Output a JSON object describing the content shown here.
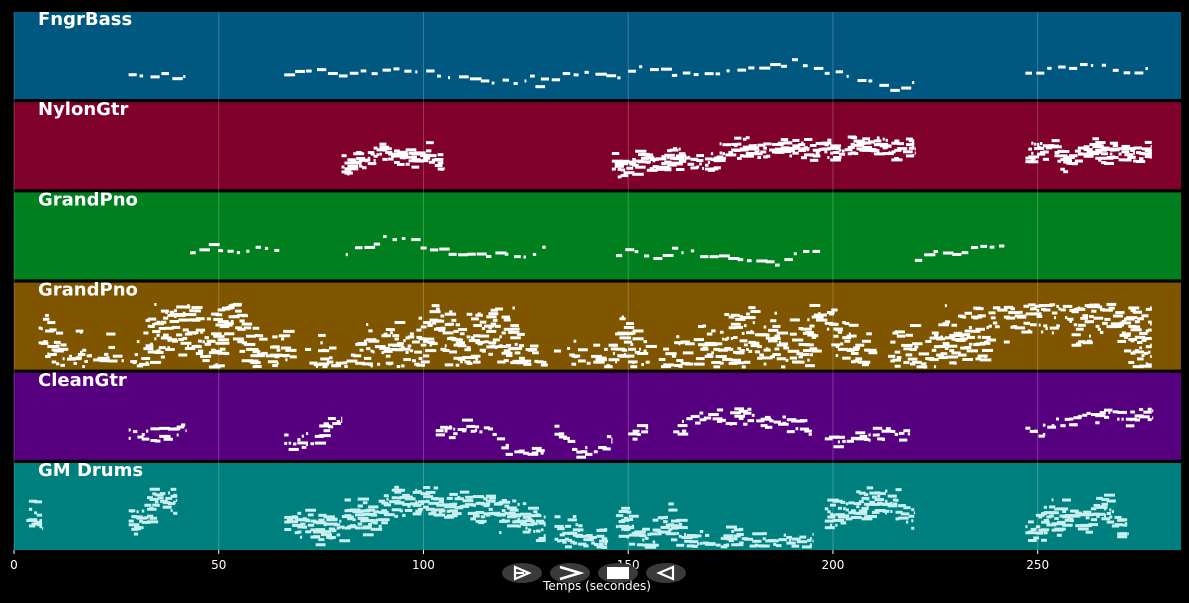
{
  "window": {
    "background": "#000000"
  },
  "chart_data": {
    "type": "piano-roll",
    "xlabel": "Temps (secondes)",
    "xlim": [
      0,
      285
    ],
    "xticks": [
      0,
      50,
      100,
      150,
      200,
      250
    ],
    "grid": true,
    "tracks": [
      {
        "name": "FngrBass",
        "color": "#00577f",
        "note_color": "#ffffff",
        "segments": [
          [
            28,
            42
          ],
          [
            66,
            130
          ],
          [
            126,
            220
          ],
          [
            247,
            278
          ]
        ],
        "pitch_spread": 0.18,
        "density": 1.2
      },
      {
        "name": "NylonGtr",
        "color": "#7f002b",
        "note_color": "#ffffff",
        "segments": [
          [
            80,
            105
          ],
          [
            146,
            220
          ],
          [
            247,
            278
          ]
        ],
        "pitch_spread": 0.22,
        "density": 4.5
      },
      {
        "name": "GrandPno",
        "color": "#007f1e",
        "note_color": "#ffffff",
        "segments": [
          [
            43,
            65
          ],
          [
            81,
            130
          ],
          [
            147,
            197
          ],
          [
            220,
            242
          ]
        ],
        "pitch_spread": 0.2,
        "density": 1.4
      },
      {
        "name": "GrandPno",
        "color": "#7f5500",
        "note_color": "#ffffff",
        "segments": [
          [
            6,
            278
          ]
        ],
        "pitch_spread": 0.55,
        "density": 6.0
      },
      {
        "name": "CleanGtr",
        "color": "#57007f",
        "note_color": "#ffffff",
        "segments": [
          [
            28,
            42
          ],
          [
            66,
            80
          ],
          [
            103,
            130
          ],
          [
            132,
            146
          ],
          [
            150,
            155
          ],
          [
            161,
            195
          ],
          [
            198,
            219
          ],
          [
            247,
            278
          ]
        ],
        "pitch_spread": 0.25,
        "density": 3.0
      },
      {
        "name": "GM Drums",
        "color": "#007f7f",
        "note_color": "#c8f0f0",
        "segments": [
          [
            3,
            7
          ],
          [
            28,
            40
          ],
          [
            66,
            130
          ],
          [
            132,
            145
          ],
          [
            147,
            195
          ],
          [
            198,
            220
          ],
          [
            247,
            272
          ]
        ],
        "pitch_spread": 0.3,
        "density": 5.0
      }
    ]
  },
  "controls": [
    {
      "name": "rewind-button",
      "icon": "rewind-icon",
      "glyph": "⊳"
    },
    {
      "name": "forward-button",
      "icon": "forward-icon",
      "glyph": ">"
    },
    {
      "name": "stop-button",
      "icon": "stop-icon",
      "glyph": "■"
    },
    {
      "name": "back-button",
      "icon": "back-icon",
      "glyph": "⊲"
    }
  ]
}
